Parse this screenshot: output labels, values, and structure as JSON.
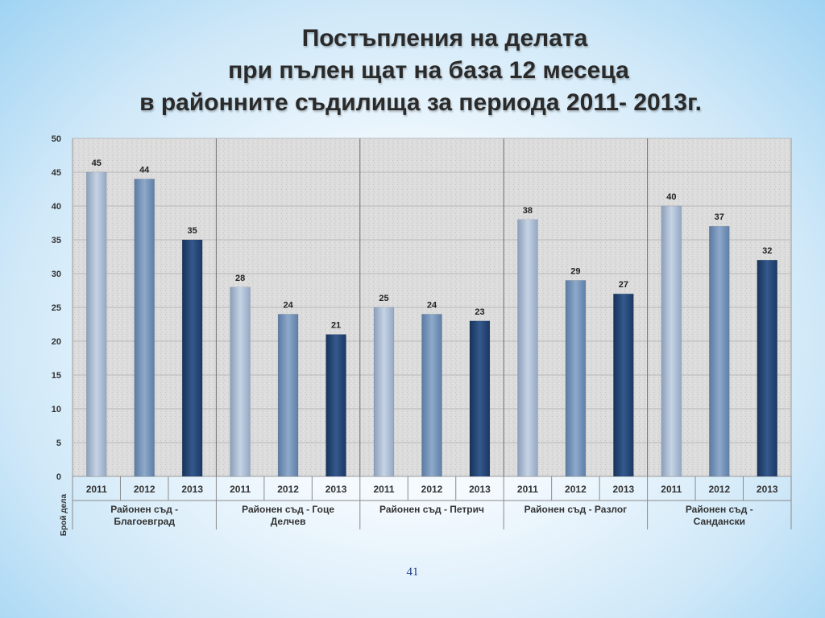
{
  "title_lines": [
    "Постъпления на делата",
    "при пълен щат на база 12 месеца",
    "в районните съдилища за периода 2011- 2013г."
  ],
  "page_number": "41",
  "chart_data": {
    "type": "bar",
    "ylabel": "Брой дела",
    "ylim": [
      0,
      50
    ],
    "yticks": [
      0,
      5,
      10,
      15,
      20,
      25,
      30,
      35,
      40,
      45,
      50
    ],
    "grid": true,
    "groups": [
      {
        "name": "Районен съд - Благоевград",
        "label_lines": [
          "Районен съд -",
          "Благоевград"
        ],
        "categories": [
          "2011",
          "2012",
          "2013"
        ],
        "values": [
          45,
          44,
          35
        ]
      },
      {
        "name": "Районен съд - Гоце Делчев",
        "label_lines": [
          "Районен съд - Гоце",
          "Делчев"
        ],
        "categories": [
          "2011",
          "2012",
          "2013"
        ],
        "values": [
          28,
          24,
          21
        ]
      },
      {
        "name": "Районен съд - Петрич",
        "label_lines": [
          "Районен съд - Петрич"
        ],
        "categories": [
          "2011",
          "2012",
          "2013"
        ],
        "values": [
          25,
          24,
          23
        ]
      },
      {
        "name": "Районен съд - Разлог",
        "label_lines": [
          "Районен съд - Разлог"
        ],
        "categories": [
          "2011",
          "2012",
          "2013"
        ],
        "values": [
          38,
          29,
          27
        ]
      },
      {
        "name": "Районен съд - Сандански",
        "label_lines": [
          "Районен съд -",
          "Сандански"
        ],
        "categories": [
          "2011",
          "2012",
          "2013"
        ],
        "values": [
          40,
          37,
          32
        ]
      }
    ],
    "colors": {
      "2011": "#a9bcd4",
      "2012": "#6f8fb5",
      "2013": "#1e3f6e"
    }
  }
}
